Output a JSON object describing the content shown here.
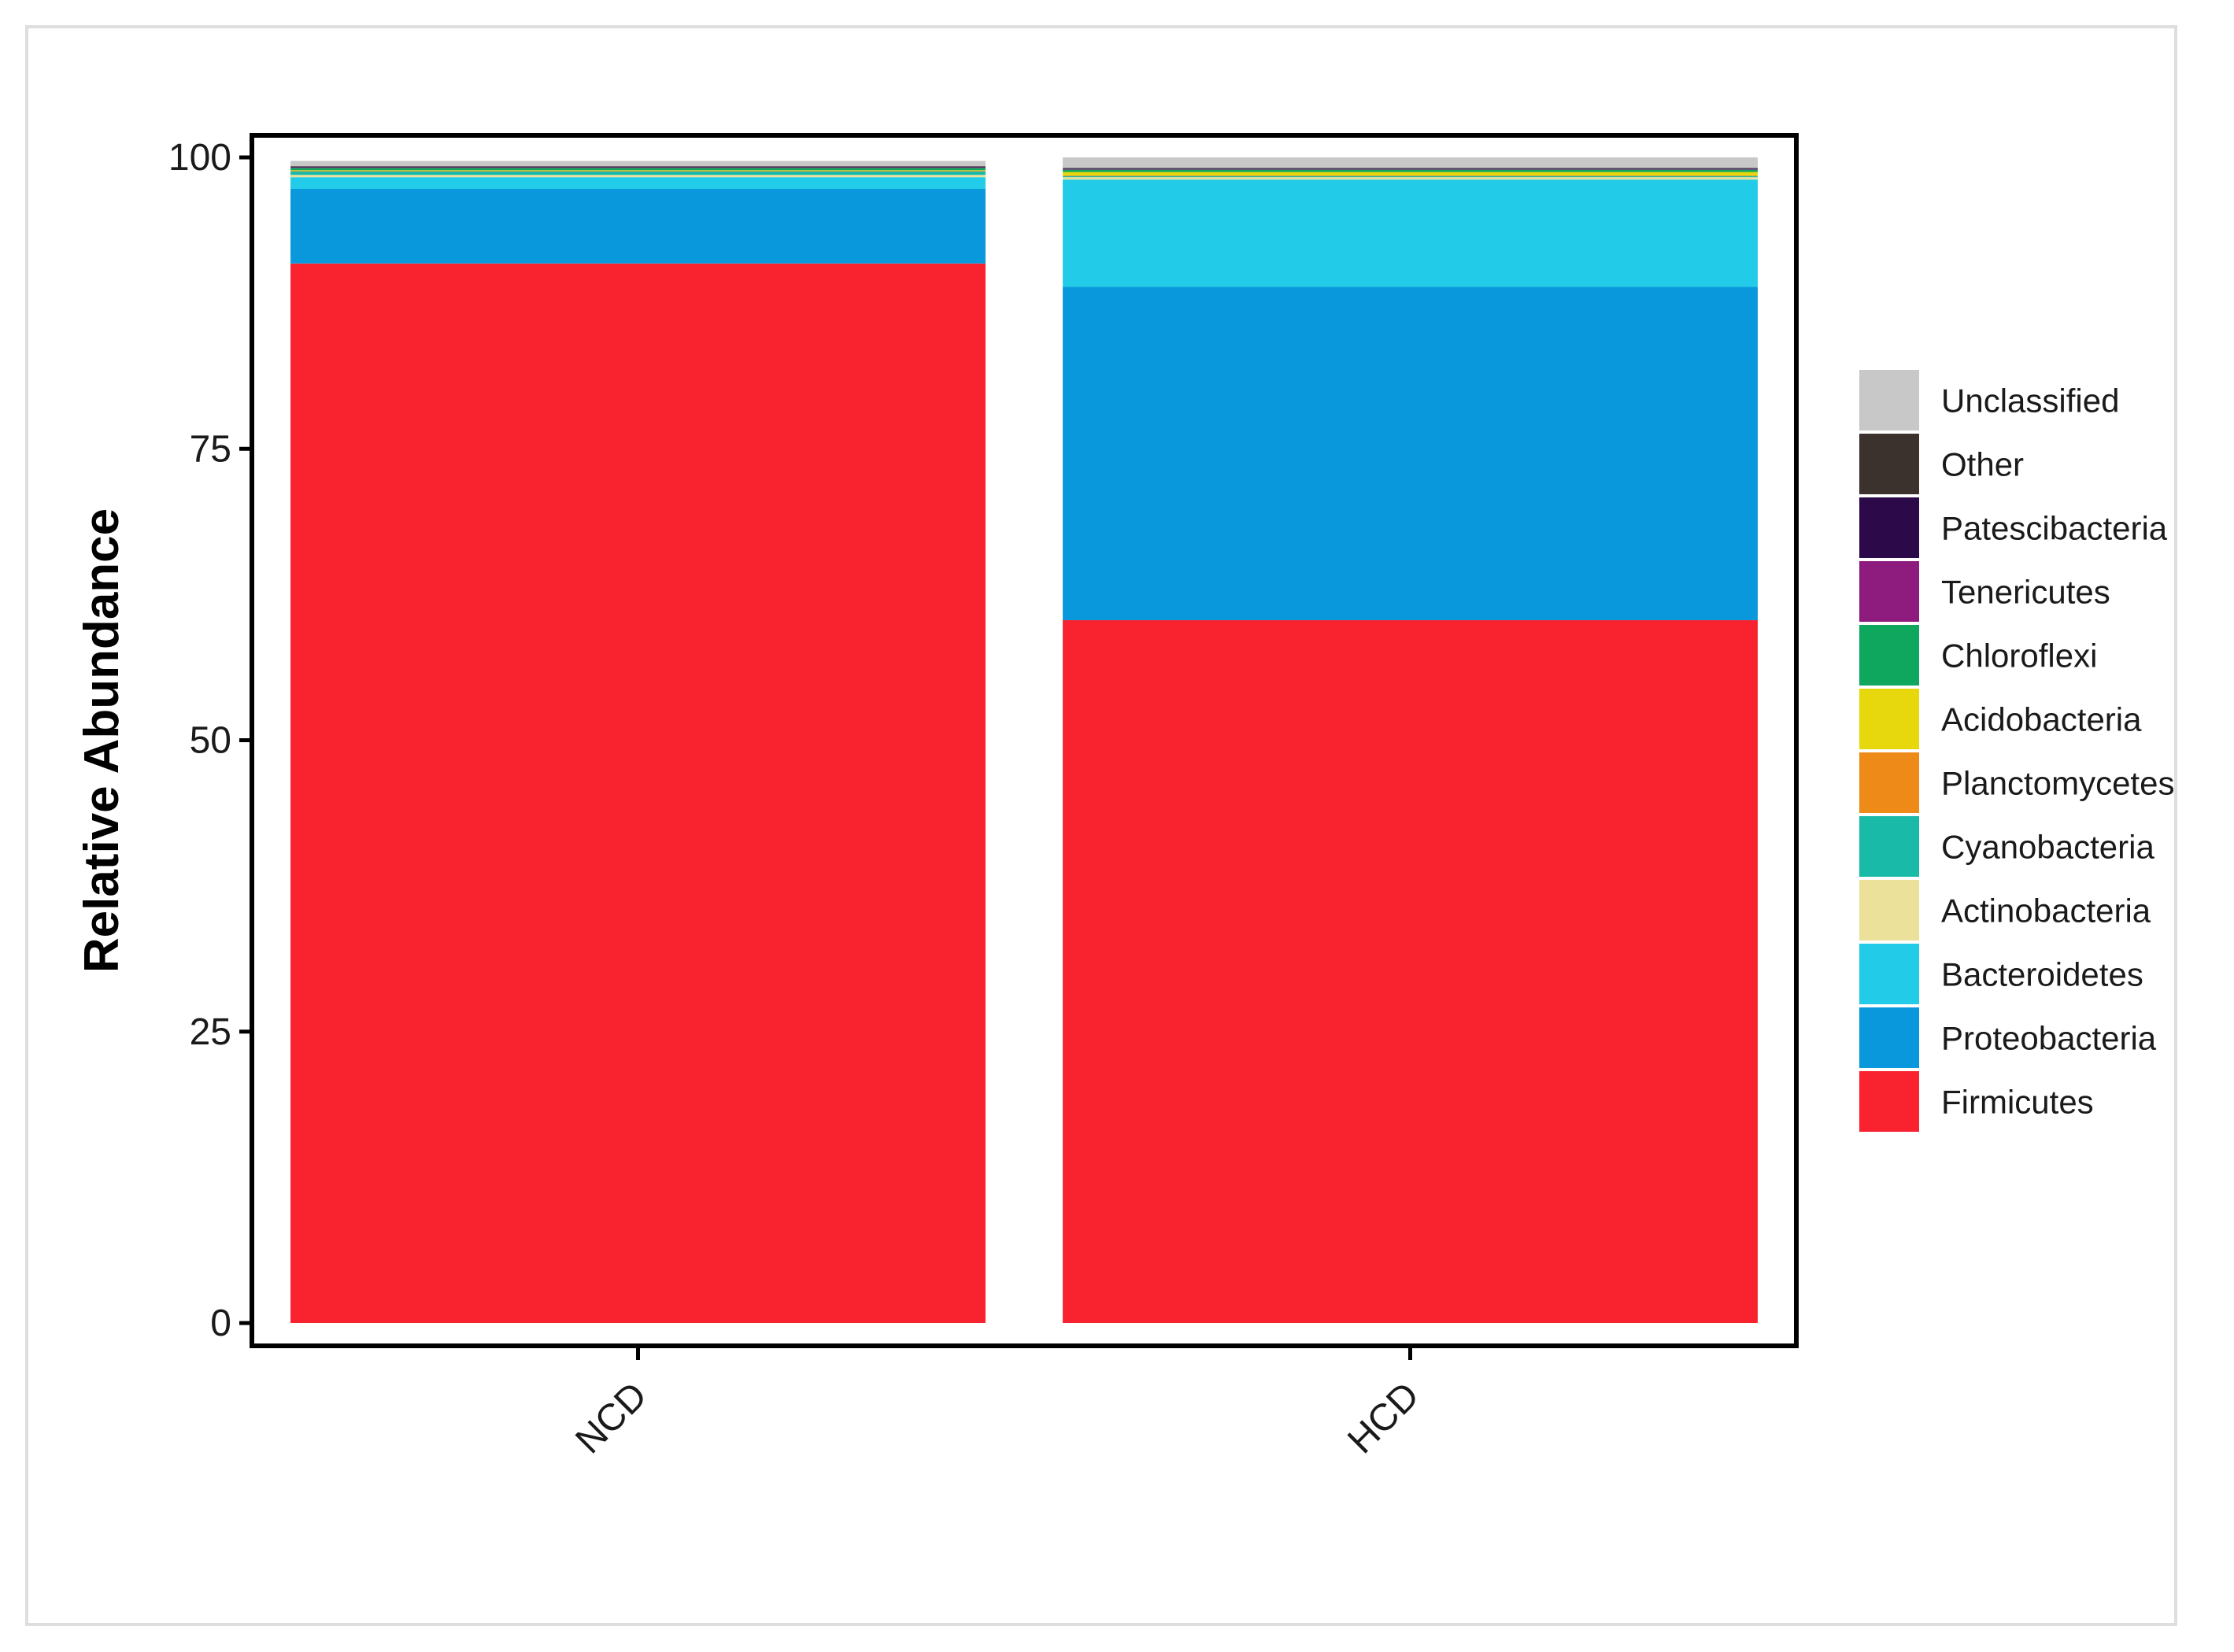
{
  "chart_data": {
    "type": "bar",
    "stacked": true,
    "title": "",
    "xlabel": "",
    "ylabel": "Relative Abundance",
    "ylim": [
      0,
      100
    ],
    "yticks": [
      0,
      25,
      50,
      75,
      100
    ],
    "categories": [
      "NCD",
      "HCD"
    ],
    "grid": false,
    "legend_position": "right",
    "series": [
      {
        "name": "Firmicutes",
        "color": "#f8232f",
        "values": [
          90.9,
          60.3
        ]
      },
      {
        "name": "Proteobacteria",
        "color": "#0a98dc",
        "values": [
          6.4,
          28.6
        ]
      },
      {
        "name": "Bacteroidetes",
        "color": "#22cce8",
        "values": [
          1.0,
          9.2
        ]
      },
      {
        "name": "Actinobacteria",
        "color": "#ebe19a",
        "values": [
          0.2,
          0.2
        ]
      },
      {
        "name": "Cyanobacteria",
        "color": "#1abaa9",
        "values": [
          0.3,
          0.1
        ]
      },
      {
        "name": "Planctomycetes",
        "color": "#ee8a17",
        "values": [
          0.05,
          0.05
        ]
      },
      {
        "name": "Acidobacteria",
        "color": "#e6d80d",
        "values": [
          0.05,
          0.3
        ]
      },
      {
        "name": "Chloroflexi",
        "color": "#0fa65e",
        "values": [
          0.2,
          0.2
        ]
      },
      {
        "name": "Tenericutes",
        "color": "#8d1c7e",
        "values": [
          0.05,
          0.05
        ]
      },
      {
        "name": "Patescibacteria",
        "color": "#2c0a4a",
        "values": [
          0.05,
          0.05
        ]
      },
      {
        "name": "Other",
        "color": "#3b312d",
        "values": [
          0.05,
          0.05
        ]
      },
      {
        "name": "Unclassified",
        "color": "#c8c8c8",
        "values": [
          0.45,
          0.9
        ]
      }
    ]
  }
}
